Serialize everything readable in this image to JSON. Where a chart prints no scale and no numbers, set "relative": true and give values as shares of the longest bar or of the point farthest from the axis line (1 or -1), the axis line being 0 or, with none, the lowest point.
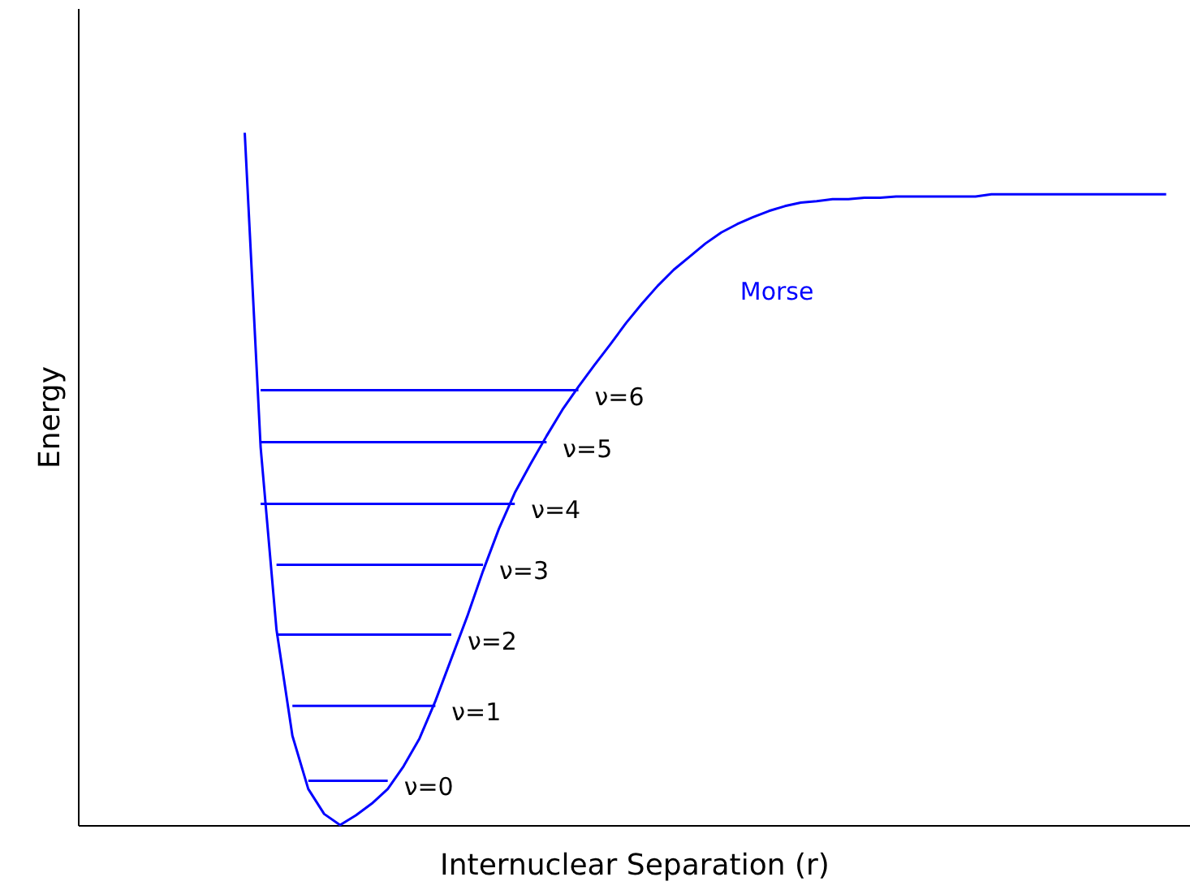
{
  "chart_data": {
    "type": "line",
    "relative": true,
    "xlabel": "Internuclear Separation (r)",
    "ylabel": "Energy",
    "categories": [
      null,
      null,
      null,
      null,
      null,
      null,
      null,
      null,
      null,
      null,
      null,
      null,
      null,
      null,
      null,
      null,
      null,
      null,
      null,
      null,
      null,
      null,
      null,
      null,
      null,
      null,
      null,
      null,
      null,
      null,
      null,
      null,
      null,
      null,
      null,
      null,
      null,
      null,
      null,
      null,
      null,
      null,
      null,
      null,
      null,
      null,
      null,
      null,
      null,
      null,
      null,
      null,
      null,
      null,
      null,
      null,
      null,
      null,
      null,
      null,
      null,
      null,
      null,
      null,
      null,
      null,
      null,
      null,
      null,
      null
    ],
    "series": [
      {
        "name": "Morse",
        "color": "#0000ff",
        "values": [
          null,
          null,
          null,
          null,
          null,
          null,
          null,
          null,
          null,
          null,
          1,
          0.546,
          0.282,
          0.129,
          0.052,
          0.016,
          0,
          0.014,
          0.031,
          0.052,
          0.085,
          0.125,
          0.179,
          0.24,
          0.301,
          0.367,
          0.428,
          0.48,
          0.522,
          0.562,
          0.6,
          0.633,
          0.664,
          0.694,
          0.725,
          0.753,
          0.779,
          0.802,
          0.821,
          0.84,
          0.856,
          0.868,
          0.878,
          0.887,
          0.894,
          0.899,
          0.901,
          0.904,
          0.904,
          0.906,
          0.906,
          0.908,
          0.908,
          0.908,
          0.908,
          0.908,
          0.908,
          0.911,
          0.911,
          0.911,
          0.911,
          0.911,
          0.911,
          0.911,
          0.911,
          0.911,
          0.911,
          0.911,
          0.911,
          null
        ]
      },
      {
        "name": "ν=0",
        "color": "#0000ff",
        "values": [
          null,
          null,
          null,
          null,
          null,
          null,
          null,
          null,
          null,
          null,
          null,
          null,
          null,
          null,
          0.064,
          0.064,
          0.064,
          0.064,
          0.064,
          0.064,
          null,
          null,
          null,
          null,
          null,
          null,
          null,
          null,
          null,
          null,
          null,
          null,
          null,
          null,
          null,
          null,
          null,
          null,
          null,
          null,
          null,
          null,
          null,
          null,
          null,
          null,
          null,
          null,
          null,
          null,
          null,
          null,
          null,
          null,
          null,
          null,
          null,
          null,
          null,
          null,
          null,
          null,
          null,
          null,
          null,
          null,
          null,
          null,
          null,
          null
        ]
      },
      {
        "name": "ν=1",
        "color": "#0000ff",
        "values": [
          null,
          null,
          null,
          null,
          null,
          null,
          null,
          null,
          null,
          null,
          null,
          null,
          null,
          0.172,
          0.172,
          0.172,
          0.172,
          0.172,
          0.172,
          0.172,
          0.172,
          0.172,
          0.172,
          null,
          null,
          null,
          null,
          null,
          null,
          null,
          null,
          null,
          null,
          null,
          null,
          null,
          null,
          null,
          null,
          null,
          null,
          null,
          null,
          null,
          null,
          null,
          null,
          null,
          null,
          null,
          null,
          null,
          null,
          null,
          null,
          null,
          null,
          null,
          null,
          null,
          null,
          null,
          null,
          null,
          null,
          null,
          null,
          null,
          null,
          null
        ]
      },
      {
        "name": "ν=2",
        "color": "#0000ff",
        "values": [
          null,
          null,
          null,
          null,
          null,
          null,
          null,
          null,
          null,
          null,
          null,
          null,
          0.275,
          0.275,
          0.275,
          0.275,
          0.275,
          0.275,
          0.275,
          0.275,
          0.275,
          0.275,
          0.275,
          0.275,
          null,
          null,
          null,
          null,
          null,
          null,
          null,
          null,
          null,
          null,
          null,
          null,
          null,
          null,
          null,
          null,
          null,
          null,
          null,
          null,
          null,
          null,
          null,
          null,
          null,
          null,
          null,
          null,
          null,
          null,
          null,
          null,
          null,
          null,
          null,
          null,
          null,
          null,
          null,
          null,
          null,
          null,
          null,
          null,
          null,
          null
        ]
      },
      {
        "name": "ν=3",
        "color": "#0000ff",
        "values": [
          null,
          null,
          null,
          null,
          null,
          null,
          null,
          null,
          null,
          null,
          null,
          null,
          0.376,
          0.376,
          0.376,
          0.376,
          0.376,
          0.376,
          0.376,
          0.376,
          0.376,
          0.376,
          0.376,
          0.376,
          0.376,
          0.376,
          null,
          null,
          null,
          null,
          null,
          null,
          null,
          null,
          null,
          null,
          null,
          null,
          null,
          null,
          null,
          null,
          null,
          null,
          null,
          null,
          null,
          null,
          null,
          null,
          null,
          null,
          null,
          null,
          null,
          null,
          null,
          null,
          null,
          null,
          null,
          null,
          null,
          null,
          null,
          null,
          null,
          null,
          null,
          null
        ]
      },
      {
        "name": "ν=4",
        "color": "#0000ff",
        "values": [
          null,
          null,
          null,
          null,
          null,
          null,
          null,
          null,
          null,
          null,
          null,
          0.464,
          0.464,
          0.464,
          0.464,
          0.464,
          0.464,
          0.464,
          0.464,
          0.464,
          0.464,
          0.464,
          0.464,
          0.464,
          0.464,
          0.464,
          0.464,
          0.464,
          null,
          null,
          null,
          null,
          null,
          null,
          null,
          null,
          null,
          null,
          null,
          null,
          null,
          null,
          null,
          null,
          null,
          null,
          null,
          null,
          null,
          null,
          null,
          null,
          null,
          null,
          null,
          null,
          null,
          null,
          null,
          null,
          null,
          null,
          null,
          null,
          null,
          null,
          null,
          null,
          null,
          null
        ]
      },
      {
        "name": "ν=5",
        "color": "#0000ff",
        "values": [
          null,
          null,
          null,
          null,
          null,
          null,
          null,
          null,
          null,
          null,
          null,
          0.553,
          0.553,
          0.553,
          0.553,
          0.553,
          0.553,
          0.553,
          0.553,
          0.553,
          0.553,
          0.553,
          0.553,
          0.553,
          0.553,
          0.553,
          0.553,
          0.553,
          0.553,
          0.553,
          null,
          null,
          null,
          null,
          null,
          null,
          null,
          null,
          null,
          null,
          null,
          null,
          null,
          null,
          null,
          null,
          null,
          null,
          null,
          null,
          null,
          null,
          null,
          null,
          null,
          null,
          null,
          null,
          null,
          null,
          null,
          null,
          null,
          null,
          null,
          null,
          null,
          null,
          null,
          null
        ]
      },
      {
        "name": "ν=6",
        "color": "#0000ff",
        "values": [
          null,
          null,
          null,
          null,
          null,
          null,
          null,
          null,
          null,
          null,
          null,
          0.628,
          0.628,
          0.628,
          0.628,
          0.628,
          0.628,
          0.628,
          0.628,
          0.628,
          0.628,
          0.628,
          0.628,
          0.628,
          0.628,
          0.628,
          0.628,
          0.628,
          0.628,
          0.628,
          0.628,
          0.628,
          null,
          null,
          null,
          null,
          null,
          null,
          null,
          null,
          null,
          null,
          null,
          null,
          null,
          null,
          null,
          null,
          null,
          null,
          null,
          null,
          null,
          null,
          null,
          null,
          null,
          null,
          null,
          null,
          null,
          null,
          null,
          null,
          null,
          null,
          null,
          null,
          null,
          null
        ]
      }
    ]
  }
}
